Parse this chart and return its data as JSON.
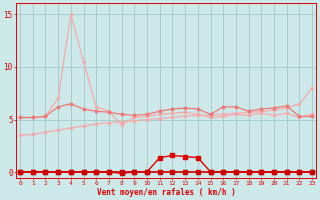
{
  "xlabel": "Vent moyen/en rafales ( km/h )",
  "background_color": "#cce8e8",
  "grid_color": "#a8cccc",
  "x": [
    0,
    1,
    2,
    3,
    4,
    5,
    6,
    7,
    8,
    9,
    10,
    11,
    12,
    13,
    14,
    15,
    16,
    17,
    18,
    19,
    20,
    21,
    22,
    23
  ],
  "line_rising": [
    3.5,
    3.6,
    3.8,
    4.0,
    4.2,
    4.4,
    4.6,
    4.7,
    4.8,
    4.9,
    5.0,
    5.1,
    5.2,
    5.35,
    5.4,
    5.45,
    5.5,
    5.6,
    5.7,
    5.75,
    5.9,
    6.1,
    6.5,
    8.0
  ],
  "line_spike": [
    5.2,
    5.2,
    5.3,
    7.0,
    15.0,
    10.5,
    6.2,
    5.8,
    4.5,
    5.2,
    5.3,
    5.5,
    5.6,
    5.7,
    5.5,
    5.2,
    5.3,
    5.5,
    5.4,
    5.6,
    5.4,
    5.6,
    5.2,
    5.5
  ],
  "line_flat": [
    5.2,
    5.2,
    5.3,
    6.2,
    6.5,
    6.0,
    5.8,
    5.7,
    5.5,
    5.4,
    5.5,
    5.8,
    6.0,
    6.1,
    6.0,
    5.5,
    6.2,
    6.2,
    5.8,
    6.0,
    6.1,
    6.3,
    5.3,
    5.3
  ],
  "line_small_bump": [
    0.05,
    0.05,
    0.05,
    0.05,
    0.05,
    0.05,
    0.05,
    0.05,
    -0.1,
    0.05,
    0.05,
    1.4,
    1.6,
    1.5,
    1.4,
    0.05,
    0.05,
    0.05,
    0.05,
    0.05,
    0.05,
    0.05,
    0.05,
    0.05
  ],
  "line_zero": [
    0.05,
    0.05,
    0.05,
    0.05,
    0.05,
    0.05,
    0.05,
    0.05,
    0.05,
    0.05,
    0.05,
    0.05,
    0.05,
    0.05,
    0.05,
    0.05,
    0.05,
    0.05,
    0.05,
    0.05,
    0.05,
    0.05,
    0.05,
    0.05
  ],
  "color_light": "#f5aaaa",
  "color_medium": "#ee7777",
  "color_dark": "#dd0000",
  "color_darkest": "#cc0000",
  "ylim": [
    -0.5,
    16
  ],
  "xlim": [
    -0.3,
    23.3
  ],
  "yticks": [
    0,
    5,
    10,
    15
  ],
  "xticks": [
    0,
    1,
    2,
    3,
    4,
    5,
    6,
    7,
    8,
    9,
    10,
    11,
    12,
    13,
    14,
    15,
    16,
    17,
    18,
    19,
    20,
    21,
    22,
    23
  ]
}
